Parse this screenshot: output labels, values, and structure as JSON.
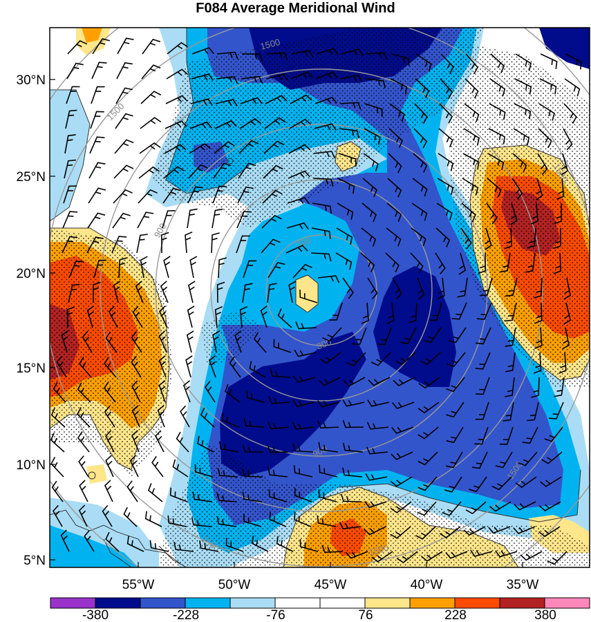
{
  "title": "F084 Average Meridional Wind",
  "latitude_labels": [
    "30°N",
    "25°N",
    "20°N",
    "15°N",
    "10°N",
    "5°N"
  ],
  "longitude_labels": [
    "55°W",
    "50°W",
    "45°W",
    "40°W",
    "35°W"
  ],
  "range_ring_labels": [
    "300",
    "900",
    "1500"
  ],
  "colorbar": {
    "labels": [
      "-380",
      "-228",
      "-76",
      "76",
      "228",
      "380"
    ],
    "colors": [
      "#9933cc",
      "#000c8b",
      "#3355cc",
      "#00b3f0",
      "#aaddf5",
      "#ffffff",
      "#ffffff",
      "#ffe68a",
      "#ffa000",
      "#ff4b00",
      "#b22222",
      "#ff88bb"
    ]
  },
  "field_colors": {
    "strong_negative": "#000c8b",
    "moderate_negative": "#3355cc",
    "weak_negative": "#00b3f0",
    "slight_negative": "#aaddf5",
    "neutral": "#ffffff",
    "slight_positive": "#ffe68a",
    "moderate_positive": "#ffa000",
    "strong_positive": "#ff4b00",
    "very_strong_positive": "#b22222"
  }
}
